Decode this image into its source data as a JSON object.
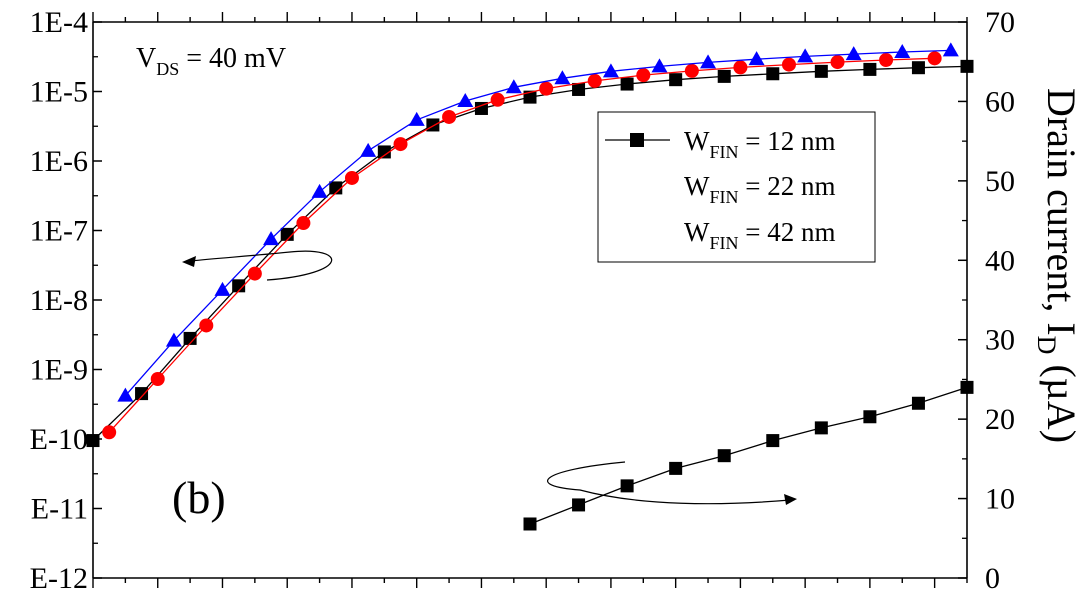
{
  "chart_data": {
    "type": "line",
    "panel_label": "(b)",
    "annotation": {
      "main": "V",
      "sub": "DS",
      "rest": " = 40 mV"
    },
    "x": [
      -0.2,
      -0.1,
      0.0,
      0.1,
      0.2,
      0.3,
      0.4,
      0.5,
      0.6,
      0.7,
      0.8,
      0.9,
      1.0,
      1.1,
      1.2,
      1.3,
      1.4,
      1.5,
      1.6,
      1.7,
      1.8,
      1.9,
      2.0,
      2.1,
      2.2,
      2.3,
      2.4,
      2.5
    ],
    "left_axis": {
      "scale": "log",
      "ylim": [
        1e-12,
        0.0001
      ],
      "tick_values": [
        0.0001,
        1e-05,
        1e-06,
        1e-07,
        1e-08,
        1e-09,
        1e-10,
        1e-11,
        1e-12
      ],
      "tick_labels": [
        "1E-4",
        "1E-5",
        "1E-6",
        "1E-7",
        "1E-8",
        "1E-9",
        "E-10",
        "E-11",
        "E-12"
      ]
    },
    "right_axis": {
      "scale": "linear",
      "ylim": [
        0,
        70
      ],
      "tick_values": [
        0,
        10,
        20,
        30,
        40,
        50,
        60,
        70
      ],
      "tick_labels": [
        "0",
        "10",
        "20",
        "30",
        "40",
        "50",
        "60",
        "70"
      ],
      "label": "Drain current, I",
      "label_sub": "D",
      "label_tail": " (µA)"
    },
    "legend": {
      "placement": "top-right",
      "entries": [
        {
          "main": "W",
          "sub": "FIN",
          "rest": " = 12 nm"
        },
        {
          "main": "W",
          "sub": "FIN",
          "rest": " = 22 nm"
        },
        {
          "main": "W",
          "sub": "FIN",
          "rest": " = 42 nm"
        }
      ]
    },
    "series": [
      {
        "name": "WFIN = 12 nm",
        "axis": "left",
        "color": "#000000",
        "marker": "square",
        "x": [
          -0.2,
          -0.05,
          0.1,
          0.25,
          0.4,
          0.55,
          0.7,
          0.85,
          1.0,
          1.15,
          1.3,
          1.45,
          1.6,
          1.75,
          1.9,
          2.05,
          2.2,
          2.35,
          2.5
        ],
        "values": [
          9.5e-11,
          4.5e-10,
          2.8e-09,
          1.6e-08,
          8.8e-08,
          4.1e-07,
          1.35e-06,
          3.3e-06,
          5.7e-06,
          8.3e-06,
          1.07e-05,
          1.28e-05,
          1.48e-05,
          1.65e-05,
          1.8e-05,
          1.95e-05,
          2.08e-05,
          2.2e-05,
          2.3e-05
        ]
      },
      {
        "name": "WFIN = 22 nm",
        "axis": "left",
        "color": "#ff0000",
        "marker": "circle",
        "x": [
          -0.15,
          0.0,
          0.15,
          0.3,
          0.45,
          0.6,
          0.75,
          0.9,
          1.05,
          1.2,
          1.35,
          1.5,
          1.65,
          1.8,
          1.95,
          2.1,
          2.25,
          2.4
        ],
        "values": [
          1.25e-10,
          7.3e-10,
          4.3e-09,
          2.4e-08,
          1.28e-07,
          5.7e-07,
          1.75e-06,
          4.3e-06,
          7.6e-06,
          1.1e-05,
          1.42e-05,
          1.72e-05,
          1.98e-05,
          2.22e-05,
          2.44e-05,
          2.65e-05,
          2.84e-05,
          3e-05
        ]
      },
      {
        "name": "WFIN = 42 nm",
        "axis": "left",
        "color": "#0000ff",
        "marker": "triangle",
        "x": [
          -0.1,
          0.05,
          0.2,
          0.35,
          0.5,
          0.65,
          0.8,
          0.95,
          1.1,
          1.25,
          1.4,
          1.55,
          1.7,
          1.85,
          2.0,
          2.15,
          2.3,
          2.45
        ],
        "values": [
          4.2e-10,
          2.6e-09,
          1.4e-08,
          7.5e-08,
          3.6e-07,
          1.4e-06,
          3.9e-06,
          7.3e-06,
          1.15e-05,
          1.55e-05,
          1.95e-05,
          2.3e-05,
          2.62e-05,
          2.92e-05,
          3.2e-05,
          3.45e-05,
          3.7e-05,
          3.9e-05
        ]
      },
      {
        "name": "WFIN = 12 nm (linear)",
        "axis": "right",
        "color": "#000000",
        "marker": "square",
        "x": [
          1.15,
          1.3,
          1.45,
          1.6,
          1.75,
          1.9,
          2.05,
          2.2,
          2.35,
          2.5
        ],
        "values": [
          6.8,
          9.2,
          11.6,
          13.8,
          15.4,
          17.3,
          18.9,
          20.3,
          22.0,
          24.0
        ]
      }
    ]
  }
}
